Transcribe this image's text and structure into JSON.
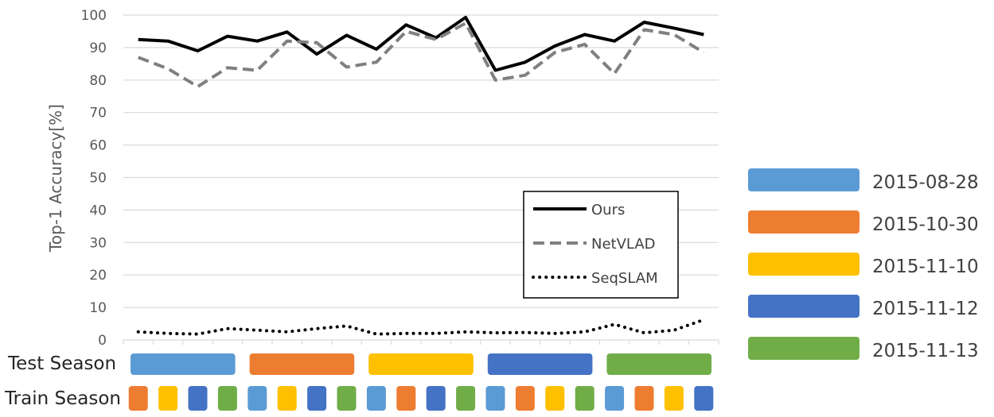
{
  "chart_data": {
    "type": "line",
    "ylabel": "Top-1 Accuracy[%]",
    "xlabel": "",
    "ylim": [
      0,
      100
    ],
    "yticks": [
      0,
      10,
      20,
      30,
      40,
      50,
      60,
      70,
      80,
      90,
      100
    ],
    "grid": true,
    "x": [
      1,
      2,
      3,
      4,
      5,
      6,
      7,
      8,
      9,
      10,
      11,
      12,
      13,
      14,
      15,
      16,
      17,
      18,
      19,
      20
    ],
    "series": [
      {
        "name": "Ours",
        "style": "solid",
        "color": "#000000",
        "values": [
          92.5,
          92,
          89,
          93.5,
          92,
          94.8,
          88,
          93.8,
          89.5,
          97,
          93,
          99.3,
          83,
          85.5,
          90.5,
          94,
          92,
          97.8,
          96,
          94
        ]
      },
      {
        "name": "NetVLAD",
        "style": "dashed",
        "color": "#808080",
        "values": [
          87,
          83.5,
          78,
          83.8,
          83,
          92,
          91.5,
          84,
          85.5,
          95,
          92.5,
          97.5,
          80,
          81.5,
          88.5,
          91,
          82,
          95.5,
          94,
          88.5
        ]
      },
      {
        "name": "SeqSLAM",
        "style": "dotted",
        "color": "#000000",
        "values": [
          2.5,
          2,
          1.8,
          3.5,
          3,
          2.5,
          3.5,
          4.3,
          1.8,
          2,
          2,
          2.5,
          2.2,
          2.3,
          2,
          2.5,
          4.8,
          2.2,
          3,
          6.2
        ]
      }
    ],
    "legend_position": "lower-right inside plot",
    "seasons": [
      {
        "label": "2015-08-28",
        "color": "#5b9bd5"
      },
      {
        "label": "2015-10-30",
        "color": "#ed7d31"
      },
      {
        "label": "2015-11-10",
        "color": "#ffc000"
      },
      {
        "label": "2015-11-12",
        "color": "#4472c4"
      },
      {
        "label": "2015-11-13",
        "color": "#70ad47"
      }
    ],
    "test_row_label": "Test Season",
    "train_row_label": "Train Season",
    "test_seasons": [
      0,
      1,
      2,
      3,
      4
    ],
    "train_seasons": [
      1,
      2,
      3,
      4,
      0,
      2,
      3,
      4,
      0,
      1,
      3,
      4,
      0,
      1,
      2,
      4,
      0,
      1,
      2,
      3
    ]
  }
}
